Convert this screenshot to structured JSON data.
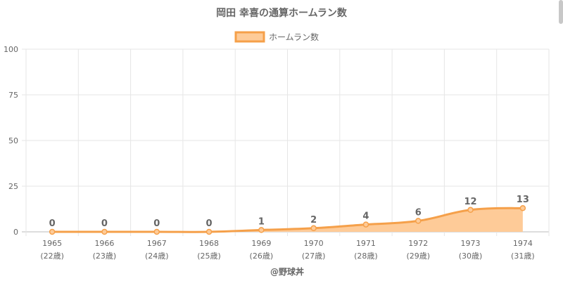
{
  "chart_data": {
    "type": "area",
    "title": "岡田 幸喜の通算ホームラン数",
    "legend": {
      "position": "top-center",
      "entries": [
        "ホームラン数"
      ]
    },
    "categories": [
      "1965",
      "1966",
      "1967",
      "1968",
      "1969",
      "1970",
      "1971",
      "1972",
      "1973",
      "1974"
    ],
    "sublabels": [
      "(22歳)",
      "(23歳)",
      "(24歳)",
      "(25歳)",
      "(26歳)",
      "(27歳)",
      "(28歳)",
      "(29歳)",
      "(30歳)",
      "(31歳)"
    ],
    "series": [
      {
        "name": "ホームラン数",
        "values": [
          0,
          0,
          0,
          0,
          1,
          2,
          4,
          6,
          12,
          13
        ],
        "color": "#f5a04a",
        "fill": "#fecb98"
      }
    ],
    "ylim": [
      0,
      100
    ],
    "yticks": [
      0,
      25,
      50,
      75,
      100
    ],
    "grid": true,
    "credit": "@野球丼"
  }
}
